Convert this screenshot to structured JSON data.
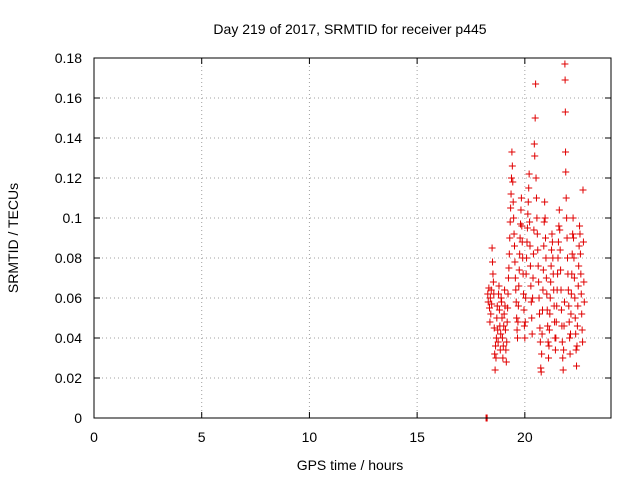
{
  "chart_data": {
    "type": "scatter",
    "title": "Day 219 of 2017, SRMTID for receiver p445",
    "xlabel": "GPS time / hours",
    "ylabel": "SRMTID / TECUs",
    "xlim": [
      0,
      24
    ],
    "ylim": [
      0,
      0.18
    ],
    "xticks": [
      0,
      5,
      10,
      15,
      20
    ],
    "yticks": [
      0,
      0.02,
      0.04,
      0.06,
      0.08,
      0.1,
      0.12,
      0.14,
      0.16,
      0.18
    ],
    "xtick_labels": [
      "0",
      "5",
      "10",
      "15",
      "20"
    ],
    "ytick_labels": [
      "0",
      "0.02",
      "0.04",
      "0.06",
      "0.08",
      "0.1",
      "0.12",
      "0.14",
      "0.16",
      "0.18"
    ],
    "grid": true,
    "color": "#e00000",
    "marker": "plus",
    "series": [
      {
        "values_xy": [
          [
            18.2,
            0.0
          ],
          [
            18.22,
            0.0
          ],
          [
            18.25,
            0.0
          ],
          [
            18.28,
            0.062
          ],
          [
            18.3,
            0.058
          ],
          [
            18.33,
            0.065
          ],
          [
            18.36,
            0.055
          ],
          [
            18.38,
            0.048
          ],
          [
            18.4,
            0.06
          ],
          [
            18.42,
            0.052
          ],
          [
            18.44,
            0.064
          ],
          [
            18.46,
            0.057
          ],
          [
            18.48,
            0.085
          ],
          [
            18.5,
            0.078
          ],
          [
            18.52,
            0.072
          ],
          [
            18.54,
            0.068
          ],
          [
            18.56,
            0.062
          ],
          [
            18.58,
            0.045
          ],
          [
            18.6,
            0.032
          ],
          [
            18.62,
            0.024
          ],
          [
            18.64,
            0.036
          ],
          [
            18.66,
            0.03
          ],
          [
            18.68,
            0.04
          ],
          [
            18.7,
            0.05
          ],
          [
            18.72,
            0.056
          ],
          [
            18.74,
            0.044
          ],
          [
            18.76,
            0.038
          ],
          [
            18.78,
            0.062
          ],
          [
            18.8,
            0.066
          ],
          [
            18.82,
            0.054
          ],
          [
            18.84,
            0.046
          ],
          [
            18.86,
            0.034
          ],
          [
            18.88,
            0.042
          ],
          [
            18.9,
            0.06
          ],
          [
            18.92,
            0.058
          ],
          [
            18.94,
            0.05
          ],
          [
            18.96,
            0.04
          ],
          [
            18.98,
            0.03
          ],
          [
            19.0,
            0.036
          ],
          [
            19.02,
            0.046
          ],
          [
            19.04,
            0.052
          ],
          [
            19.06,
            0.064
          ],
          [
            19.08,
            0.056
          ],
          [
            19.1,
            0.044
          ],
          [
            19.12,
            0.034
          ],
          [
            19.14,
            0.028
          ],
          [
            19.16,
            0.038
          ],
          [
            19.18,
            0.048
          ],
          [
            19.2,
            0.055
          ],
          [
            19.22,
            0.062
          ],
          [
            19.24,
            0.07
          ],
          [
            19.26,
            0.075
          ],
          [
            19.28,
            0.082
          ],
          [
            19.3,
            0.09
          ],
          [
            19.32,
            0.098
          ],
          [
            19.34,
            0.105
          ],
          [
            19.36,
            0.112
          ],
          [
            19.38,
            0.12
          ],
          [
            19.4,
            0.133
          ],
          [
            19.42,
            0.126
          ],
          [
            19.44,
            0.118
          ],
          [
            19.46,
            0.108
          ],
          [
            19.48,
            0.1
          ],
          [
            19.5,
            0.092
          ],
          [
            19.52,
            0.086
          ],
          [
            19.54,
            0.078
          ],
          [
            19.56,
            0.07
          ],
          [
            19.58,
            0.064
          ],
          [
            19.6,
            0.058
          ],
          [
            19.62,
            0.05
          ],
          [
            19.64,
            0.044
          ],
          [
            19.66,
            0.04
          ],
          [
            19.68,
            0.048
          ],
          [
            19.7,
            0.056
          ],
          [
            19.72,
            0.066
          ],
          [
            19.74,
            0.074
          ],
          [
            19.76,
            0.082
          ],
          [
            19.78,
            0.09
          ],
          [
            19.8,
            0.097
          ],
          [
            19.82,
            0.104
          ],
          [
            19.84,
            0.11
          ],
          [
            19.86,
            0.096
          ],
          [
            19.88,
            0.088
          ],
          [
            19.9,
            0.08
          ],
          [
            19.92,
            0.072
          ],
          [
            19.94,
            0.062
          ],
          [
            19.96,
            0.054
          ],
          [
            19.98,
            0.046
          ],
          [
            20.0,
            0.04
          ],
          [
            20.02,
            0.048
          ],
          [
            20.04,
            0.06
          ],
          [
            20.06,
            0.072
          ],
          [
            20.08,
            0.08
          ],
          [
            20.1,
            0.088
          ],
          [
            20.12,
            0.095
          ],
          [
            20.14,
            0.102
          ],
          [
            20.16,
            0.108
          ],
          [
            20.18,
            0.115
          ],
          [
            20.2,
            0.122
          ],
          [
            20.22,
            0.098
          ],
          [
            20.24,
            0.086
          ],
          [
            20.26,
            0.076
          ],
          [
            20.28,
            0.066
          ],
          [
            20.3,
            0.058
          ],
          [
            20.32,
            0.05
          ],
          [
            20.34,
            0.042
          ],
          [
            20.36,
            0.06
          ],
          [
            20.38,
            0.07
          ],
          [
            20.4,
            0.082
          ],
          [
            20.42,
            0.094
          ],
          [
            20.44,
            0.137
          ],
          [
            20.46,
            0.131
          ],
          [
            20.48,
            0.15
          ],
          [
            20.5,
            0.167
          ],
          [
            20.52,
            0.12
          ],
          [
            20.54,
            0.11
          ],
          [
            20.56,
            0.1
          ],
          [
            20.58,
            0.092
          ],
          [
            20.6,
            0.084
          ],
          [
            20.62,
            0.076
          ],
          [
            20.64,
            0.068
          ],
          [
            20.66,
            0.06
          ],
          [
            20.68,
            0.052
          ],
          [
            20.7,
            0.045
          ],
          [
            20.72,
            0.038
          ],
          [
            20.74,
            0.025
          ],
          [
            20.76,
            0.023
          ],
          [
            20.78,
            0.032
          ],
          [
            20.8,
            0.042
          ],
          [
            20.82,
            0.054
          ],
          [
            20.84,
            0.064
          ],
          [
            20.86,
            0.074
          ],
          [
            20.88,
            0.086
          ],
          [
            20.9,
            0.098
          ],
          [
            20.92,
            0.108
          ],
          [
            20.94,
            0.1
          ],
          [
            20.96,
            0.09
          ],
          [
            20.98,
            0.08
          ],
          [
            21.0,
            0.07
          ],
          [
            21.02,
            0.062
          ],
          [
            21.04,
            0.054
          ],
          [
            21.06,
            0.046
          ],
          [
            21.08,
            0.038
          ],
          [
            21.1,
            0.03
          ],
          [
            21.12,
            0.036
          ],
          [
            21.14,
            0.044
          ],
          [
            21.16,
            0.052
          ],
          [
            21.18,
            0.06
          ],
          [
            21.2,
            0.068
          ],
          [
            21.22,
            0.076
          ],
          [
            21.24,
            0.084
          ],
          [
            21.26,
            0.092
          ],
          [
            21.28,
            0.088
          ],
          [
            21.3,
            0.08
          ],
          [
            21.32,
            0.072
          ],
          [
            21.34,
            0.064
          ],
          [
            21.36,
            0.056
          ],
          [
            21.38,
            0.048
          ],
          [
            21.4,
            0.04
          ],
          [
            21.42,
            0.034
          ],
          [
            21.44,
            0.04
          ],
          [
            21.46,
            0.048
          ],
          [
            21.48,
            0.056
          ],
          [
            21.5,
            0.064
          ],
          [
            21.52,
            0.072
          ],
          [
            21.54,
            0.08
          ],
          [
            21.56,
            0.088
          ],
          [
            21.58,
            0.096
          ],
          [
            21.6,
            0.104
          ],
          [
            21.62,
            0.094
          ],
          [
            21.64,
            0.084
          ],
          [
            21.66,
            0.074
          ],
          [
            21.68,
            0.064
          ],
          [
            21.7,
            0.054
          ],
          [
            21.72,
            0.046
          ],
          [
            21.74,
            0.038
          ],
          [
            21.76,
            0.03
          ],
          [
            21.78,
            0.024
          ],
          [
            21.8,
            0.034
          ],
          [
            21.82,
            0.046
          ],
          [
            21.84,
            0.058
          ],
          [
            21.86,
            0.177
          ],
          [
            21.87,
            0.169
          ],
          [
            21.88,
            0.153
          ],
          [
            21.89,
            0.133
          ],
          [
            21.9,
            0.123
          ],
          [
            21.92,
            0.11
          ],
          [
            21.94,
            0.1
          ],
          [
            21.96,
            0.09
          ],
          [
            21.98,
            0.08
          ],
          [
            22.0,
            0.072
          ],
          [
            22.02,
            0.064
          ],
          [
            22.04,
            0.056
          ],
          [
            22.06,
            0.048
          ],
          [
            22.08,
            0.04
          ],
          [
            22.1,
            0.032
          ],
          [
            22.12,
            0.042
          ],
          [
            22.14,
            0.052
          ],
          [
            22.16,
            0.062
          ],
          [
            22.18,
            0.072
          ],
          [
            22.2,
            0.082
          ],
          [
            22.22,
            0.092
          ],
          [
            22.24,
            0.1
          ],
          [
            22.26,
            0.09
          ],
          [
            22.28,
            0.08
          ],
          [
            22.3,
            0.07
          ],
          [
            22.32,
            0.06
          ],
          [
            22.34,
            0.05
          ],
          [
            22.36,
            0.042
          ],
          [
            22.38,
            0.034
          ],
          [
            22.4,
            0.026
          ],
          [
            22.42,
            0.036
          ],
          [
            22.44,
            0.046
          ],
          [
            22.46,
            0.056
          ],
          [
            22.48,
            0.066
          ],
          [
            22.5,
            0.076
          ],
          [
            22.52,
            0.086
          ],
          [
            22.54,
            0.096
          ],
          [
            22.56,
            0.092
          ],
          [
            22.58,
            0.082
          ],
          [
            22.6,
            0.072
          ],
          [
            22.62,
            0.062
          ],
          [
            22.64,
            0.052
          ],
          [
            22.66,
            0.044
          ],
          [
            22.68,
            0.038
          ],
          [
            22.7,
            0.114
          ],
          [
            22.72,
            0.088
          ],
          [
            22.74,
            0.068
          ],
          [
            22.76,
            0.058
          ]
        ]
      }
    ]
  }
}
